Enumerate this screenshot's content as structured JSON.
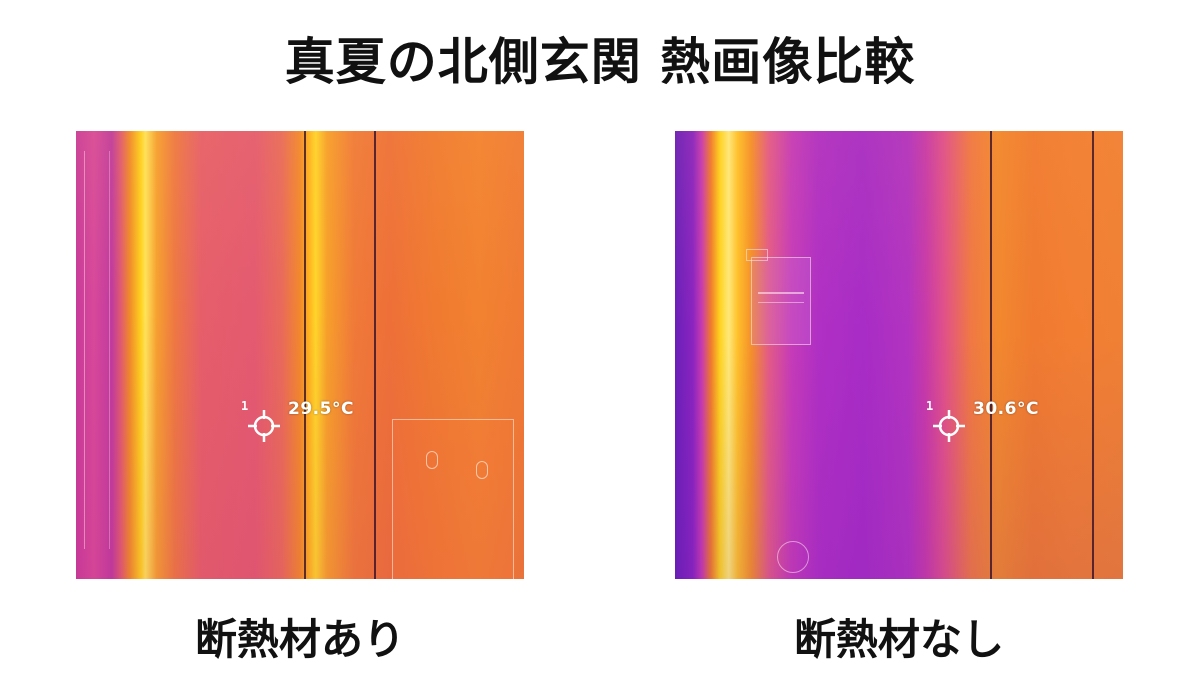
{
  "title": "真夏の北側玄関 熱画像比較",
  "panels": [
    {
      "caption": "断熱材あり",
      "spot_number": "1",
      "temperature": "29.5°C"
    },
    {
      "caption": "断熱材なし",
      "spot_number": "1",
      "temperature": "30.6°C"
    }
  ],
  "palette": {
    "cold": "#6a1fb8",
    "cool": "#b02fc4",
    "mid": "#e8508a",
    "warm": "#f0782e",
    "hot": "#ffd21e",
    "hottest": "#fff27a"
  }
}
